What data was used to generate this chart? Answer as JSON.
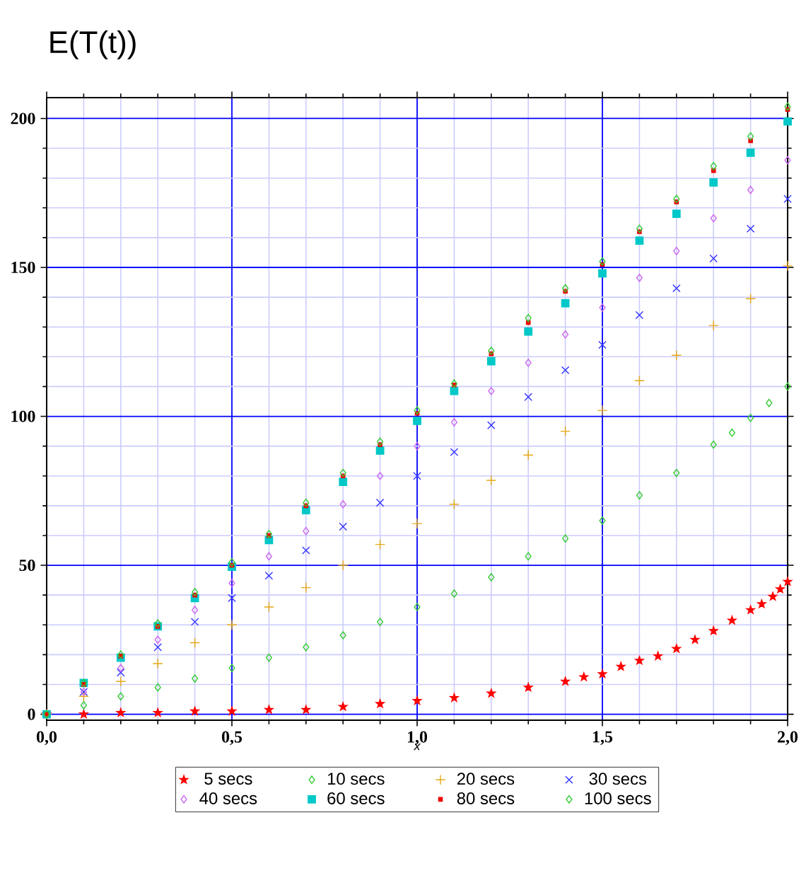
{
  "chart_data": {
    "type": "scatter",
    "title": "E(T(t))",
    "xlabel": "x",
    "xlim": [
      0,
      2
    ],
    "ylim": [
      -2,
      207
    ],
    "xticks": [
      {
        "value": 0,
        "label": "0,0"
      },
      {
        "value": 0.1,
        "label": null
      },
      {
        "value": 0.2,
        "label": null
      },
      {
        "value": 0.3,
        "label": null
      },
      {
        "value": 0.4,
        "label": null
      },
      {
        "value": 0.5,
        "label": "0,5"
      },
      {
        "value": 0.6,
        "label": null
      },
      {
        "value": 0.7,
        "label": null
      },
      {
        "value": 0.8,
        "label": null
      },
      {
        "value": 0.9,
        "label": null
      },
      {
        "value": 1,
        "label": "1,0"
      },
      {
        "value": 1.1,
        "label": null
      },
      {
        "value": 1.2,
        "label": null
      },
      {
        "value": 1.3,
        "label": null
      },
      {
        "value": 1.4,
        "label": null
      },
      {
        "value": 1.5,
        "label": "1,5"
      },
      {
        "value": 1.6,
        "label": null
      },
      {
        "value": 1.7,
        "label": null
      },
      {
        "value": 1.8,
        "label": null
      },
      {
        "value": 1.9,
        "label": null
      },
      {
        "value": 2,
        "label": "2,0"
      }
    ],
    "yticks": [
      0,
      {
        "value": 10,
        "label": null
      },
      {
        "value": 20,
        "label": null
      },
      {
        "value": 30,
        "label": null
      },
      {
        "value": 40,
        "label": null
      },
      50,
      {
        "value": 60,
        "label": null
      },
      {
        "value": 70,
        "label": null
      },
      {
        "value": 80,
        "label": null
      },
      {
        "value": 90,
        "label": null
      },
      100,
      {
        "value": 110,
        "label": null
      },
      {
        "value": 120,
        "label": null
      },
      {
        "value": 130,
        "label": null
      },
      {
        "value": 140,
        "label": null
      },
      150,
      {
        "value": 160,
        "label": null
      },
      {
        "value": 170,
        "label": null
      },
      {
        "value": 180,
        "label": null
      },
      {
        "value": 190,
        "label": null
      },
      200
    ],
    "grid": true,
    "legend": "bottom",
    "series": [
      {
        "name": "5 secs",
        "color": "#ff0000",
        "marker": "star",
        "x": [
          0,
          0.1,
          0.2,
          0.3,
          0.4,
          0.5,
          0.6,
          0.7,
          0.8,
          0.9,
          1.0,
          1.1,
          1.2,
          1.3,
          1.4,
          1.45,
          1.5,
          1.55,
          1.6,
          1.65,
          1.7,
          1.75,
          1.8,
          1.85,
          1.9,
          1.93,
          1.96,
          1.98,
          2.0
        ],
        "values": [
          0,
          0,
          0.5,
          0.5,
          1,
          1,
          1.5,
          1.5,
          2.5,
          3.5,
          4.5,
          5.5,
          7,
          9,
          11,
          12.5,
          13.5,
          16,
          18,
          19.5,
          22,
          25,
          28,
          31.5,
          35,
          37,
          39.5,
          42,
          44.5
        ]
      },
      {
        "name": "10 secs",
        "color": "#33cc33",
        "marker": "diamond",
        "x": [
          0.1,
          0.2,
          0.3,
          0.4,
          0.5,
          0.6,
          0.7,
          0.8,
          0.9,
          1.0,
          1.1,
          1.2,
          1.3,
          1.4,
          1.5,
          1.6,
          1.7,
          1.8,
          1.85,
          1.9,
          1.95,
          2.0
        ],
        "values": [
          3,
          6,
          9,
          12,
          15.5,
          19,
          22.5,
          26.5,
          31,
          36,
          40.5,
          46,
          53,
          59,
          65,
          73.5,
          81,
          90.5,
          94.5,
          99.5,
          104.5,
          110
        ]
      },
      {
        "name": "20 secs",
        "color": "#e6a817",
        "marker": "plus",
        "x": [
          0,
          0.1,
          0.2,
          0.3,
          0.4,
          0.5,
          0.6,
          0.7,
          0.8,
          0.9,
          1.0,
          1.1,
          1.2,
          1.3,
          1.4,
          1.5,
          1.6,
          1.7,
          1.8,
          1.9,
          2.0
        ],
        "values": [
          0,
          6,
          11,
          17,
          24,
          30,
          36,
          42.5,
          50,
          57,
          64,
          70.5,
          78.5,
          87,
          95,
          102,
          112,
          120.5,
          130.5,
          139.5,
          150.5
        ]
      },
      {
        "name": "30 secs",
        "color": "#3333ff",
        "marker": "cross",
        "x": [
          0,
          0.1,
          0.2,
          0.3,
          0.4,
          0.5,
          0.6,
          0.7,
          0.8,
          0.9,
          1.0,
          1.1,
          1.2,
          1.3,
          1.4,
          1.5,
          1.6,
          1.7,
          1.8,
          1.9,
          2.0
        ],
        "values": [
          0,
          7.5,
          14,
          22.5,
          31,
          39,
          46.5,
          55,
          63,
          71,
          80,
          88,
          97,
          106.5,
          115.5,
          124,
          134,
          143,
          153,
          163,
          173
        ]
      },
      {
        "name": "40 secs",
        "color": "#cc66ee",
        "marker": "diamond",
        "x": [
          0,
          0.1,
          0.2,
          0.3,
          0.4,
          0.5,
          0.6,
          0.7,
          0.8,
          0.9,
          1.0,
          1.1,
          1.2,
          1.3,
          1.4,
          1.5,
          1.6,
          1.7,
          1.8,
          1.9,
          2.0
        ],
        "values": [
          0,
          7.5,
          15.5,
          25,
          35,
          44,
          53,
          61.5,
          70.5,
          80,
          90,
          98,
          108.5,
          118,
          127.5,
          136.5,
          146.5,
          155.5,
          166.5,
          176,
          186
        ]
      },
      {
        "name": "60 secs",
        "color": "#00c8c8",
        "marker": "square",
        "x": [
          0,
          0.1,
          0.2,
          0.3,
          0.4,
          0.5,
          0.6,
          0.7,
          0.8,
          0.9,
          1.0,
          1.1,
          1.2,
          1.3,
          1.4,
          1.5,
          1.6,
          1.7,
          1.8,
          1.9,
          2.0
        ],
        "values": [
          0,
          10.5,
          19,
          29.5,
          39,
          49.5,
          58.5,
          68.5,
          78,
          88.5,
          98.5,
          108.5,
          118.5,
          128.5,
          138,
          148,
          159,
          168,
          178.5,
          188.5,
          199
        ]
      },
      {
        "name": "80 secs",
        "color": "#ee0000",
        "marker": "square",
        "x": [
          0,
          0.1,
          0.2,
          0.3,
          0.4,
          0.5,
          0.6,
          0.7,
          0.8,
          0.9,
          1.0,
          1.1,
          1.2,
          1.3,
          1.4,
          1.5,
          1.6,
          1.7,
          1.8,
          1.9,
          2.0
        ],
        "values": [
          0,
          10,
          19.5,
          29.5,
          40,
          50,
          60,
          70,
          80,
          90.5,
          101,
          110.5,
          121,
          131.5,
          142,
          151,
          162,
          172,
          182.5,
          192.5,
          203
        ]
      },
      {
        "name": "100 secs",
        "color": "#33cc33",
        "marker": "diamond",
        "x": [
          0,
          0.1,
          0.2,
          0.3,
          0.4,
          0.5,
          0.6,
          0.7,
          0.8,
          0.9,
          1.0,
          1.1,
          1.2,
          1.3,
          1.4,
          1.5,
          1.6,
          1.7,
          1.8,
          1.9,
          2.0
        ],
        "values": [
          0,
          10.5,
          20,
          30.5,
          41,
          51,
          60.5,
          71,
          81,
          91.5,
          102,
          111,
          122,
          133,
          143,
          152,
          163,
          173,
          184,
          194,
          204
        ]
      }
    ]
  }
}
